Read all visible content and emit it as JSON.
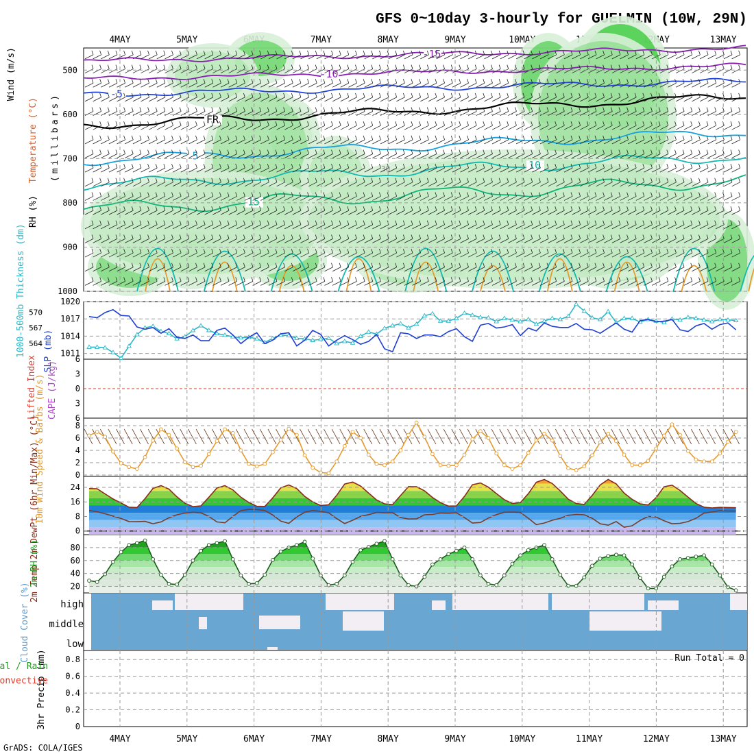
{
  "title": "GFS 0~10day 3-hourly for GUELMIN (10W, 29N)",
  "credit": "GrADS: COLA/IGES",
  "run_total": "Run Total = 0",
  "colors": {
    "rh_green": "#32c832",
    "rh_light": "#d7efd7",
    "rh_gray": "#a8b8a8",
    "temp_purple": "#8a1fb4",
    "temp_blue": "#2244dd",
    "temp_cyan": "#15a0e0",
    "temp_teal": "#12b9b0",
    "temp_green": "#10b57a",
    "temp_orange": "#e79a2a",
    "slp": "#1f3fd1",
    "thickness": "#2ab7c8",
    "wind_speed": "#e49b2f",
    "temp_line": "#8b2b17",
    "cloud": "#6aa6d2",
    "cloud_clear": "#f2eef4",
    "precip_label": "#e03a2a"
  },
  "chart_data": [
    {
      "type": "heatmap",
      "panel": "upper-air",
      "ylabel_parts": [
        "RH (%)",
        "Temperature (°C)",
        "Wind (m/s)"
      ],
      "ylabel_units": "(millibars)",
      "x_labels": [
        "4MAY",
        "5MAY",
        "6MAY",
        "7MAY",
        "8MAY",
        "9MAY",
        "10MAY",
        "11MAY",
        "12MAY",
        "13MAY"
      ],
      "yticks": [
        500,
        600,
        700,
        800,
        900,
        1000
      ],
      "ylim": [
        1000,
        450
      ],
      "isotherm_labels": [
        "-15",
        "-10",
        "-5",
        "FR",
        "5",
        "10",
        "15"
      ],
      "rh_label": "30"
    },
    {
      "type": "line",
      "panel": "slp-thickness",
      "ylabel_left": "1000-500mb Thickness (dm)",
      "ylabel_right": "SLP (mb)",
      "left_ticks": [
        "570",
        "567",
        "564"
      ],
      "right_ticks": [
        "1020",
        "1017",
        "1014",
        "1011"
      ],
      "slp_ylim": [
        1010,
        1020
      ],
      "series": [
        {
          "name": "SLP (mb)",
          "values": [
            1017.4,
            1017.2,
            1018.1,
            1018.6,
            1017.6,
            1017.5,
            1015.6,
            1015.2,
            1015.5,
            1014.5,
            1015.3,
            1013.8,
            1013.6,
            1014.2,
            1013.2,
            1013.2,
            1015.0,
            1015.4,
            1014.2,
            1012.7,
            1013.8,
            1014.6,
            1012.7,
            1013.3,
            1014.4,
            1014.6,
            1012.3,
            1013.3,
            1015.0,
            1014.3,
            1012.3,
            1013.3,
            1014.1,
            1013.4,
            1012.6,
            1013.1,
            1014.3,
            1011.8,
            1011.3,
            1014.6,
            1014.4,
            1013.6,
            1014.2,
            1014.2,
            1013.9,
            1014.8,
            1015.3,
            1013.9,
            1013.1,
            1015.9,
            1016.2,
            1015.4,
            1015.6,
            1016.0,
            1014.1,
            1015.4,
            1014.9,
            1016.3,
            1015.7,
            1015.5,
            1015.5,
            1016.2,
            1015.2,
            1015.1,
            1014.5,
            1015.4,
            1016.3,
            1015.2,
            1014.7,
            1016.7,
            1016.9,
            1016.5,
            1016.6,
            1016.9,
            1015.1,
            1014.8,
            1015.8,
            1016.2,
            1015.2,
            1016.0,
            1016.3,
            1015.1
          ]
        },
        {
          "name": "1000-500mb Thickness (dm)",
          "values": [
            563.3,
            563.3,
            563.2,
            562.3,
            561.2,
            563.5,
            565.7,
            567.0,
            567.3,
            566.3,
            565.9,
            564.9,
            565.3,
            566.5,
            567.4,
            566.5,
            565.9,
            565.6,
            565.3,
            565.1,
            565.2,
            564.9,
            564.2,
            565.0,
            565.6,
            565.5,
            565.0,
            564.9,
            564.6,
            564.8,
            565.0,
            564.0,
            564.4,
            564.1,
            565.4,
            566.2,
            565.8,
            566.9,
            567.4,
            567.8,
            567.0,
            567.7,
            569.3,
            569.7,
            568.3,
            568.3,
            568.8,
            569.8,
            569.4,
            569.0,
            568.9,
            568.2,
            568.8,
            568.5,
            568.2,
            568.6,
            567.7,
            568.3,
            568.8,
            568.6,
            569.2,
            571.5,
            570.2,
            568.9,
            568.6,
            570.1,
            568.0,
            568.8,
            568.8,
            568.1,
            568.6,
            568.3,
            568.0,
            568.7,
            568.5,
            569.0,
            568.8,
            568.5,
            568.2,
            568.6,
            568.5,
            568.4
          ]
        }
      ]
    },
    {
      "type": "line",
      "panel": "stability",
      "ylabel_left": "Lifted Index",
      "ylabel_right": "CAPE (J/kg)",
      "yticks": [
        "6",
        "3",
        "0",
        "3",
        "6"
      ],
      "ylim": [
        6,
        -6
      ],
      "series": [
        {
          "name": "Lifted Index",
          "values": []
        }
      ]
    },
    {
      "type": "line",
      "panel": "wind-10m",
      "ylabel": "10m Wind Speed & Barbs (m/s)",
      "yticks": [
        "8",
        "6",
        "4",
        "2",
        "0"
      ],
      "ylim": [
        0,
        9
      ],
      "series": [
        {
          "name": "10m Wind Speed",
          "values": [
            6.4,
            7.0,
            6.2,
            3.8,
            1.9,
            1.3,
            1.0,
            2.9,
            5.6,
            7.4,
            6.5,
            4.3,
            2.1,
            1.3,
            1.5,
            3.4,
            5.5,
            7.4,
            6.8,
            4.0,
            1.8,
            1.4,
            1.8,
            3.7,
            5.7,
            7.5,
            6.5,
            3.2,
            1.2,
            0.4,
            0.3,
            2.2,
            4.7,
            7.0,
            6.0,
            3.3,
            1.8,
            1.6,
            2.2,
            4.0,
            6.5,
            8.5,
            6.2,
            3.4,
            1.6,
            1.5,
            1.6,
            3.3,
            5.8,
            7.1,
            6.0,
            3.5,
            1.6,
            1.0,
            1.6,
            3.6,
            5.6,
            6.7,
            5.6,
            3.1,
            1.1,
            0.8,
            1.4,
            3.2,
            5.3,
            6.7,
            5.5,
            3.3,
            1.6,
            1.6,
            2.3,
            4.3,
            6.4,
            8.2,
            6.5,
            3.9,
            2.5,
            2.2,
            2.2,
            3.5,
            5.4,
            7.0
          ]
        }
      ]
    },
    {
      "type": "area",
      "panel": "temperature",
      "ylabel": "2m Temp 2m DewPt (6hr Min/Max) (°C)",
      "yticks": [
        "24",
        "16",
        "8",
        "0"
      ],
      "ylim": [
        -2,
        30
      ],
      "series": [
        {
          "name": "2m Temp",
          "values": [
            23.3,
            23.2,
            20.4,
            17.6,
            15.4,
            13.1,
            12.9,
            17.8,
            23.4,
            24.9,
            23.0,
            18.8,
            15.2,
            13.4,
            13.8,
            18.6,
            23.6,
            24.9,
            22.6,
            18.6,
            15.7,
            13.6,
            13.5,
            18.2,
            23.7,
            25.3,
            23.3,
            19.0,
            16.0,
            14.0,
            14.4,
            19.6,
            25.8,
            26.9,
            24.7,
            20.8,
            17.1,
            14.9,
            14.5,
            19.5,
            24.4,
            24.3,
            22.1,
            18.4,
            15.6,
            13.7,
            13.8,
            19.0,
            25.4,
            26.4,
            24.1,
            20.6,
            17.2,
            15.1,
            15.6,
            20.5,
            26.8,
            28.3,
            26.1,
            22.0,
            17.5,
            15.1,
            14.6,
            19.6,
            25.3,
            28.3,
            25.9,
            20.8,
            17.4,
            14.9,
            14.3,
            18.3,
            24.3,
            25.2,
            22.3,
            18.6,
            15.1,
            13.1,
            12.7,
            13.0,
            12.9,
            12.8
          ]
        },
        {
          "name": "2m DewPt",
          "values": [
            11.3,
            10.6,
            9.5,
            8.2,
            6.9,
            5.2,
            5.1,
            5.3,
            4.0,
            5.0,
            7.3,
            8.9,
            9.9,
            10.3,
            10.0,
            8.0,
            5.0,
            4.5,
            8.0,
            11.2,
            11.9,
            11.8,
            11.3,
            8.8,
            5.4,
            4.2,
            7.7,
            10.3,
            11.3,
            10.8,
            10.0,
            6.8,
            4.1,
            5.9,
            8.0,
            9.0,
            10.2,
            10.0,
            10.1,
            7.4,
            6.6,
            6.7,
            8.9,
            9.1,
            9.9,
            9.8,
            10.0,
            7.4,
            4.4,
            4.7,
            7.1,
            9.0,
            10.3,
            10.4,
            10.2,
            7.0,
            3.5,
            4.4,
            5.9,
            7.0,
            8.6,
            9.1,
            8.9,
            7.0,
            4.0,
            3.2,
            5.2,
            2.1,
            2.9,
            5.8,
            8.0,
            7.7,
            5.6,
            4.0,
            4.2,
            5.2,
            7.0,
            9.9,
            10.5,
            11.2,
            11.0,
            11.0
          ]
        }
      ]
    },
    {
      "type": "area",
      "panel": "rh",
      "ylabel": "2m RH (%)",
      "yticks": [
        "80",
        "60",
        "40",
        "20"
      ],
      "ylim": [
        10,
        100
      ],
      "series": [
        {
          "name": "2m RH",
          "values": [
            29,
            27,
            39,
            58,
            73,
            84,
            87,
            91,
            62,
            38,
            24,
            23,
            38,
            60,
            75,
            84,
            87,
            90,
            62,
            37,
            24,
            25,
            38,
            61,
            74,
            80,
            84,
            89,
            63,
            37,
            22,
            24,
            37,
            58,
            76,
            81,
            86,
            90,
            62,
            37,
            22,
            20,
            35,
            54,
            62,
            70,
            75,
            80,
            62,
            37,
            24,
            22,
            37,
            55,
            68,
            76,
            80,
            84,
            62,
            38,
            21,
            21,
            34,
            52,
            63,
            67,
            69,
            68,
            54,
            33,
            17,
            17,
            35,
            51,
            62,
            64,
            66,
            68,
            54,
            37,
            19,
            14
          ]
        }
      ]
    },
    {
      "type": "heatmap",
      "panel": "cloud",
      "ylabel": "Cloud Cover (%)",
      "levels": [
        "high",
        "middle",
        "low"
      ]
    },
    {
      "type": "bar",
      "panel": "precip",
      "ylabel": "3hr Precip (mm)",
      "legend_total": "Total / Rain",
      "legend_conv": "Convective",
      "yticks": [
        "0.8",
        "0.6",
        "0.4",
        "0.2",
        "0"
      ],
      "ylim": [
        0,
        0.9
      ],
      "series": [
        {
          "name": "3hr Precip",
          "values": []
        }
      ]
    }
  ]
}
